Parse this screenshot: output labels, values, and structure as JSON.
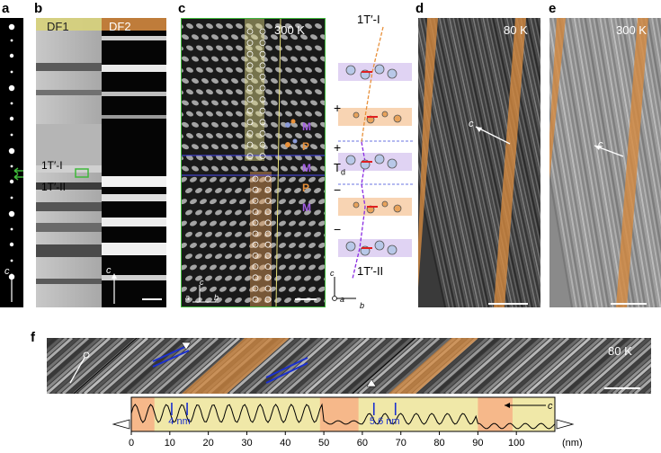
{
  "panels": {
    "a": {
      "letter": "a",
      "axis_label": "c"
    },
    "b": {
      "letter": "b",
      "df1": "DF1",
      "df2": "DF2",
      "phase1": "1T′-I",
      "phase2": "1T′-II",
      "axis_label": "c"
    },
    "c": {
      "letter": "c",
      "temp": "300 K",
      "layer_M": "M",
      "layer_P": "P",
      "axes": {
        "c": "c",
        "a": "a",
        "b": "b"
      },
      "schematic": {
        "top": "1T′-I",
        "bottom": "1T′-II",
        "mid": "T",
        "mid_sub": "d",
        "signs": [
          "+",
          "+",
          "−",
          "−"
        ]
      }
    },
    "d": {
      "letter": "d",
      "temp": "80 K",
      "axis_label": "c"
    },
    "e": {
      "letter": "e",
      "temp": "300 K",
      "axis_label": "c"
    },
    "f": {
      "letter": "f",
      "temp": "80 K"
    }
  },
  "colors": {
    "orange": "#e8a25a",
    "yellow": "#e6e08a",
    "green": "#3fb83a",
    "blue": "#1a2fd0",
    "purple": "#8a2be2",
    "lavender": "#d8c8f0",
    "peach": "#f6c9a0"
  },
  "chart_data": {
    "type": "line",
    "x_ticks": [
      0,
      10,
      20,
      30,
      40,
      50,
      60,
      70,
      80,
      90,
      100
    ],
    "x_unit": "(nm)",
    "xlim": [
      0,
      110
    ],
    "orange_regions": [
      [
        0,
        6
      ],
      [
        49,
        59
      ],
      [
        90,
        99
      ]
    ],
    "annotations": [
      {
        "label": "4 nm",
        "x1": 10.5,
        "x2": 14.5
      },
      {
        "label": "5.6 nm",
        "x1": 63,
        "x2": 68.6
      }
    ],
    "axis_label": "c"
  }
}
